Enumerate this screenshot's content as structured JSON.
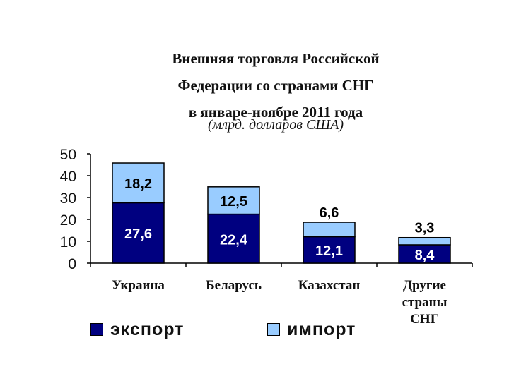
{
  "chart_data": {
    "type": "bar",
    "stacked": true,
    "title_lines": [
      "Внешняя торговля Российской",
      "Федерации со странами СНГ",
      "в январе-ноябре 2011 года"
    ],
    "subtitle": "(млрд. долларов США)",
    "categories": [
      [
        "Украина"
      ],
      [
        "Беларусь"
      ],
      [
        "Казахстан"
      ],
      [
        "Другие",
        "страны",
        "СНГ"
      ]
    ],
    "series": [
      {
        "name": "экспорт",
        "color": "#000080",
        "values": [
          27.6,
          22.4,
          12.1,
          8.4
        ],
        "labels": [
          "27,6",
          "22,4",
          "12,1",
          "8,4"
        ]
      },
      {
        "name": "импорт",
        "color": "#99CCFF",
        "values": [
          18.2,
          12.5,
          6.6,
          3.3
        ],
        "labels": [
          "18,2",
          "12,5",
          "6,6",
          "3,3"
        ]
      }
    ],
    "ylim": [
      0,
      50
    ],
    "yticks": [
      0,
      10,
      20,
      30,
      40,
      50
    ],
    "ytick_labels": [
      "0",
      "10",
      "20",
      "30",
      "40",
      "50"
    ],
    "legend_position": "bottom",
    "grid": false
  }
}
